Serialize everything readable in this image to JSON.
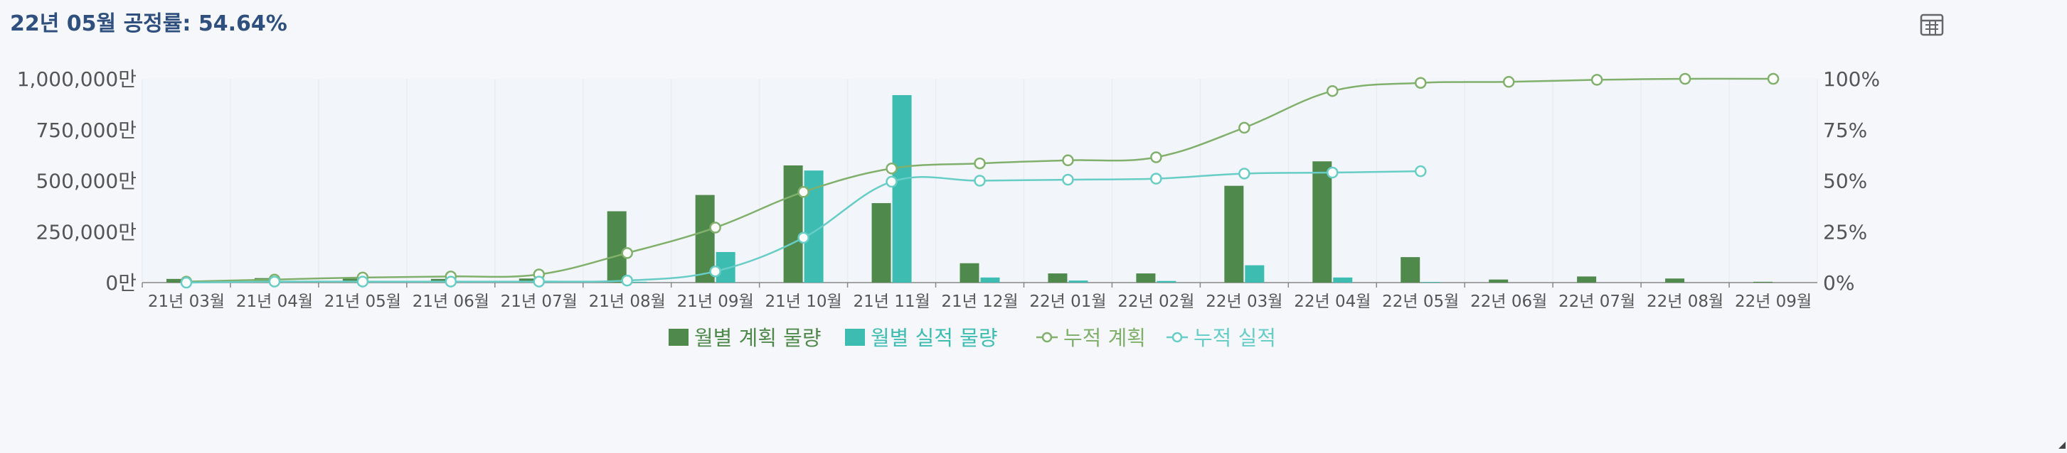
{
  "header": {
    "title": "22년 05월 공정률: 54.64%",
    "toolbox_icon": "data-view-icon"
  },
  "colors": {
    "plan_bar": "#4f8a4c",
    "actual_bar": "#3dbdb2",
    "plan_line": "#80b06c",
    "actual_line": "#67cdc6",
    "axis_text": "#555555",
    "title_text": "#2f4f7f",
    "grid": "#e9edf2"
  },
  "chart_data": {
    "type": "bar",
    "categories": [
      "21년 03월",
      "21년 04월",
      "21년 05월",
      "21년 06월",
      "21년 07월",
      "21년 08월",
      "21년 09월",
      "21년 10월",
      "21년 11월",
      "21년 12월",
      "22년 01월",
      "22년 02월",
      "22년 03월",
      "22년 04월",
      "22년 05월",
      "22년 06월",
      "22년 07월",
      "22년 08월",
      "22년 09월"
    ],
    "y_left": {
      "ticks": [
        "0만",
        "250,000만",
        "500,000만",
        "750,000만",
        "1,000,000만"
      ],
      "range": [
        0,
        1000000
      ]
    },
    "y_right": {
      "ticks": [
        "0%",
        "25%",
        "50%",
        "75%",
        "100%"
      ],
      "range": [
        0,
        100
      ]
    },
    "series": [
      {
        "name": "월별 계획 물량",
        "kind": "bar",
        "axis": "left",
        "values": [
          18000,
          22000,
          20000,
          18000,
          20000,
          350000,
          430000,
          575000,
          390000,
          95000,
          45000,
          45000,
          475000,
          595000,
          125000,
          15000,
          30000,
          20000,
          4000
        ]
      },
      {
        "name": "월별 실적 물량",
        "kind": "bar",
        "axis": "left",
        "values": [
          2000,
          4000,
          3000,
          4000,
          4000,
          4000,
          150000,
          550000,
          920000,
          25000,
          10000,
          8000,
          85000,
          25000,
          3000,
          null,
          null,
          null,
          null
        ]
      },
      {
        "name": "누적 계획",
        "kind": "line",
        "axis": "right",
        "values": [
          0.5,
          1.5,
          2.5,
          3,
          4,
          14.5,
          27,
          44.5,
          56,
          58.5,
          60,
          61.5,
          76,
          94,
          98,
          98.5,
          99.5,
          100,
          100
        ]
      },
      {
        "name": "누적 실적",
        "kind": "line",
        "axis": "right",
        "values": [
          0,
          0.5,
          0.5,
          0.5,
          0.5,
          1,
          5.5,
          22,
          49.5,
          50,
          50.5,
          51,
          53.5,
          54,
          54.64,
          null,
          null,
          null,
          null
        ]
      }
    ],
    "grid": true,
    "legend_position": "bottom-center"
  }
}
